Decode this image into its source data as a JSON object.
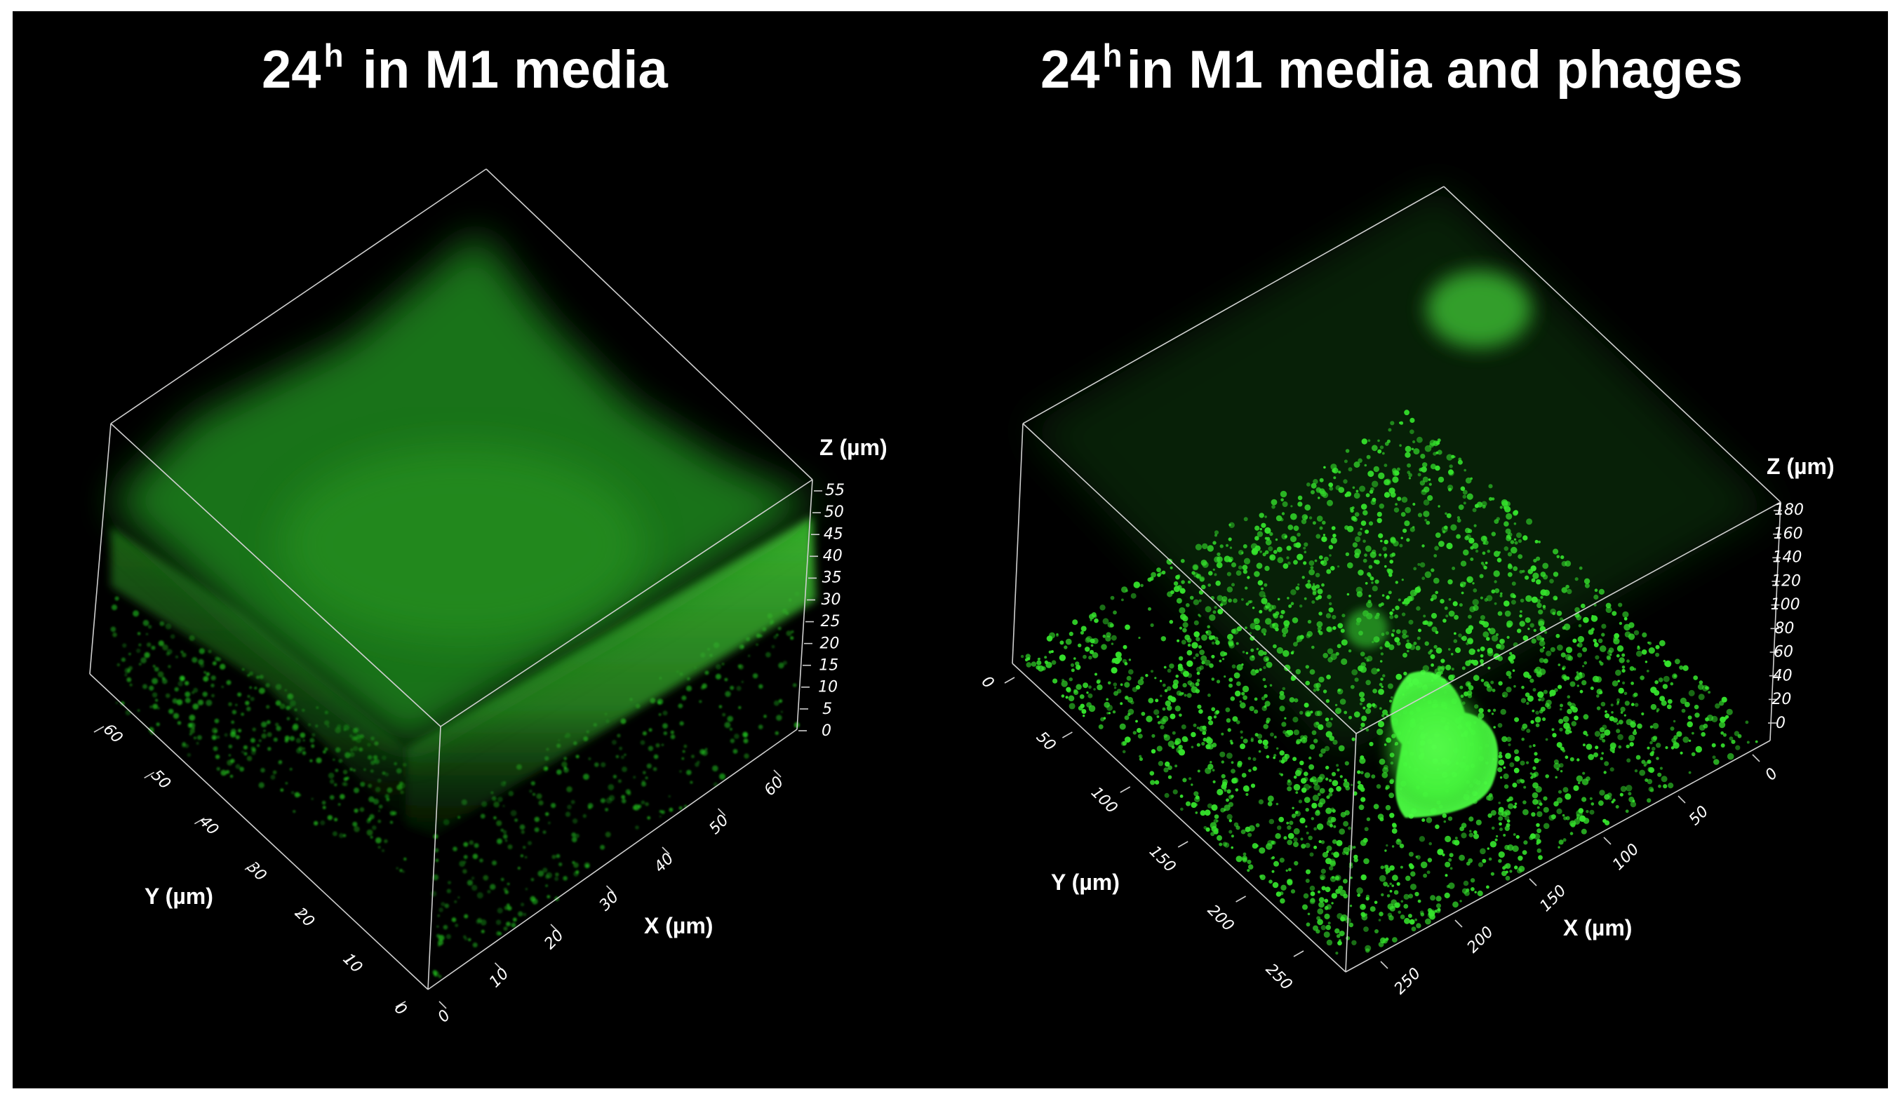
{
  "panels": [
    {
      "title_main": "24",
      "title_sup": "h",
      "title_rest": "in M1 media",
      "z_label": "Z (µm)",
      "y_label": "Y (µm)",
      "x_label": "X (µm)",
      "z_ticks": [
        "55",
        "50",
        "45",
        "40",
        "35",
        "30",
        "25",
        "20",
        "15",
        "10",
        "5",
        "0"
      ],
      "y_ticks": [
        "60",
        "50",
        "40",
        "30",
        "20",
        "10",
        "0"
      ],
      "x_ticks": [
        "0",
        "10",
        "20",
        "30",
        "40",
        "50",
        "60"
      ],
      "colors": {
        "fluorescence": "#22c81e",
        "bright": "#46ff3c",
        "axis": "#cfcfcf"
      }
    },
    {
      "title_main": "24",
      "title_sup": "h",
      "title_rest": "in M1 media and phages",
      "z_label": "Z (µm)",
      "y_label": "Y (µm)",
      "x_label": "X (µm)",
      "z_ticks": [
        "180",
        "160",
        "140",
        "120",
        "100",
        "80",
        "60",
        "40",
        "20",
        "0"
      ],
      "y_ticks": [
        "0",
        "50",
        "100",
        "150",
        "200",
        "250"
      ],
      "x_ticks": [
        "250",
        "200",
        "150",
        "100",
        "50",
        "0"
      ],
      "colors": {
        "fluorescence": "#35e32c",
        "bright": "#52ff48",
        "axis": "#cfcfcf"
      }
    }
  ]
}
